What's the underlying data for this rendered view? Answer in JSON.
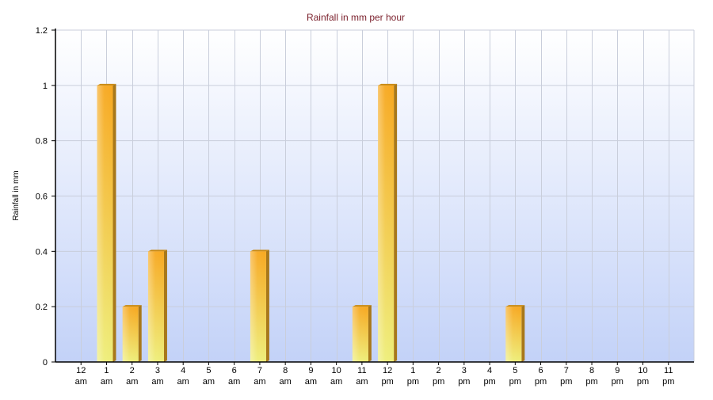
{
  "chart_data": {
    "type": "bar",
    "title": "Rainfall in mm per hour",
    "xlabel": "",
    "ylabel": "Rainfall in mm",
    "ylim": [
      0,
      1.2
    ],
    "yticks": [
      "0",
      "0.2",
      "0.4",
      "0.6",
      "0.8",
      "1",
      "1.2"
    ],
    "categories": [
      [
        "12",
        "am"
      ],
      [
        "1",
        "am"
      ],
      [
        "2",
        "am"
      ],
      [
        "3",
        "am"
      ],
      [
        "4",
        "am"
      ],
      [
        "5",
        "am"
      ],
      [
        "6",
        "am"
      ],
      [
        "7",
        "am"
      ],
      [
        "8",
        "am"
      ],
      [
        "9",
        "am"
      ],
      [
        "10",
        "am"
      ],
      [
        "11",
        "am"
      ],
      [
        "12",
        "pm"
      ],
      [
        "1",
        "pm"
      ],
      [
        "2",
        "pm"
      ],
      [
        "3",
        "pm"
      ],
      [
        "4",
        "pm"
      ],
      [
        "5",
        "pm"
      ],
      [
        "6",
        "pm"
      ],
      [
        "7",
        "pm"
      ],
      [
        "8",
        "pm"
      ],
      [
        "9",
        "pm"
      ],
      [
        "10",
        "pm"
      ],
      [
        "11",
        "pm"
      ]
    ],
    "values": [
      0,
      1,
      0.2,
      0.4,
      0,
      0,
      0,
      0.4,
      0,
      0,
      0,
      0.2,
      1,
      0,
      0,
      0,
      0,
      0.2,
      0,
      0,
      0,
      0,
      0,
      0
    ],
    "grid": true,
    "legend": "none",
    "colors": {
      "title": "#7a1f2b",
      "bar_top": "#f7a820",
      "bar_bottom": "#eeee7a",
      "bar_side": "#a8781a",
      "background_top": "#ffffff",
      "background_bottom": "#c3d2f8",
      "grid": "#c9cedb",
      "axis": "#000000"
    }
  }
}
